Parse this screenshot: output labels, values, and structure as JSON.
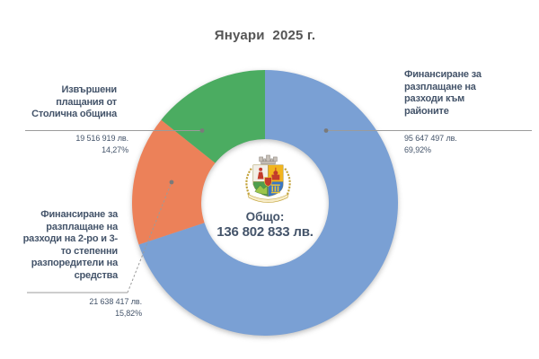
{
  "chart_data": {
    "type": "pie",
    "subtype": "doughnut",
    "title": "Януари  2025 г.",
    "center_label": "Общо:",
    "center_value_label": "136 802 833 лв.",
    "total_value": 136802833,
    "start_angle_deg": 0,
    "direction": "clockwise",
    "legend_position": "callout-labels",
    "hole_ratio": 0.48,
    "slices": [
      {
        "name": "Финансиране за разплащане на разходи към районите",
        "value": 95647497,
        "value_label": "95 647 497 лв.",
        "percent": 69.92,
        "percent_label": "69,92%",
        "color": "#7AA0D4"
      },
      {
        "name": "Финансиране за разплащане на разходи на 2-ро и 3-то степенни разпоредители на средства",
        "value": 21638417,
        "value_label": "21 638 417 лв.",
        "percent": 15.82,
        "percent_label": "15,82%",
        "color": "#EC8159"
      },
      {
        "name": "Извършени плащания от Столична община",
        "value": 19516919,
        "value_label": "19 516 919 лв.",
        "percent": 14.27,
        "percent_label": "14,27%",
        "color": "#4BAC61"
      }
    ]
  },
  "emblem_icon": "sofia-coat-of-arms-icon",
  "colors": {
    "label_text": "#44546A",
    "title_text": "#555555",
    "leader_line": "#9B9B9B",
    "leader_dot": "#7A7A7A"
  }
}
